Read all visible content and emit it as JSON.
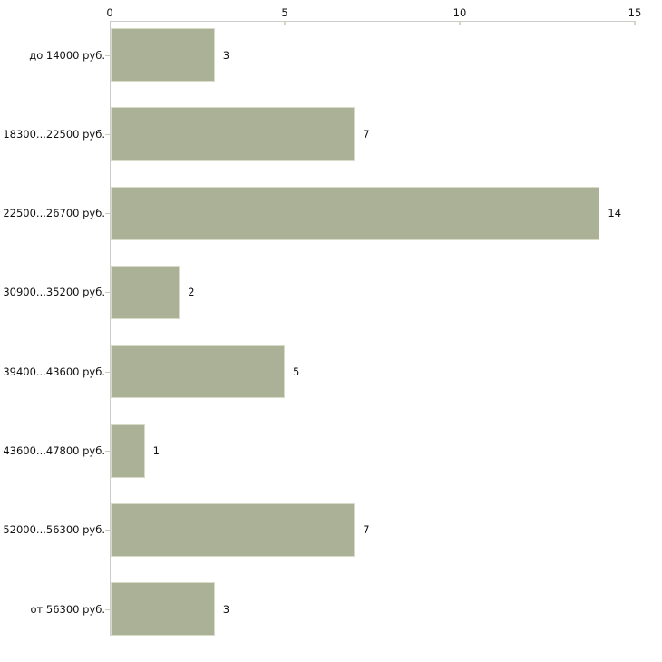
{
  "chart_data": {
    "type": "bar",
    "orientation": "horizontal",
    "axis_position": "top",
    "grid": false,
    "legend": false,
    "categories": [
      "до 14000 руб.",
      "18300...22500 руб.",
      "22500...26700 руб.",
      "30900...35200 руб.",
      "39400...43600 руб.",
      "43600...47800 руб.",
      "52000...56300 руб.",
      "от 56300 руб."
    ],
    "values": [
      3,
      7,
      14,
      2,
      5,
      1,
      7,
      3
    ],
    "x_ticks": [
      0,
      5,
      10,
      15
    ],
    "xlim": [
      0,
      15
    ],
    "colors": {
      "bar_fill": "#ABB196",
      "bar_border": "#D8DBC8",
      "axis_line": "#CCCCCC",
      "x_tick_mark": "#D4D7BD",
      "y_tick_mark": "#C8CCB8",
      "text": "#111111",
      "background": "#FFFFFF"
    }
  }
}
